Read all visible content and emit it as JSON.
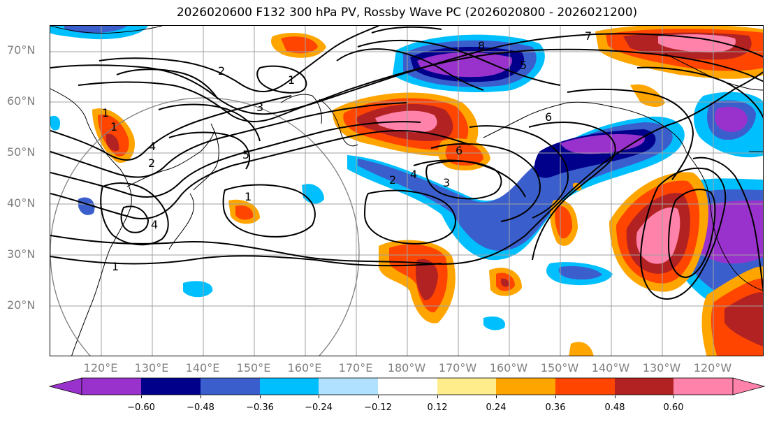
{
  "title": "2026020600 F132 300 hPa PV, Rossby Wave PC (2026020800 - 2026021200)",
  "latitude_labels": [
    "70°N",
    "60°N",
    "50°N",
    "40°N",
    "30°N",
    "20°N"
  ],
  "longitude_labels": [
    "120°E",
    "130°E",
    "140°E",
    "150°E",
    "160°E",
    "170°E",
    "180°W",
    "170°W",
    "160°W",
    "150°W",
    "140°W",
    "130°W",
    "120°W"
  ],
  "contour_labels": [
    "7",
    "2",
    "1",
    "8",
    "5",
    "3",
    "6",
    "4",
    "2",
    "1",
    "1",
    "5",
    "1",
    "2",
    "4",
    "3",
    "1",
    "4",
    "6"
  ],
  "colorbar": {
    "ticks": [
      "−0.60",
      "−0.48",
      "−0.36",
      "−0.24",
      "−0.12",
      "0.12",
      "0.24",
      "0.36",
      "0.48",
      "0.60"
    ],
    "colors": [
      "#9932cc",
      "#00008b",
      "#3a5fcd",
      "#00bfff",
      "#b0e2ff",
      "#ffffff",
      "#ffec8b",
      "#ffa500",
      "#ff4500",
      "#b22222",
      "#ff82ab"
    ]
  }
}
